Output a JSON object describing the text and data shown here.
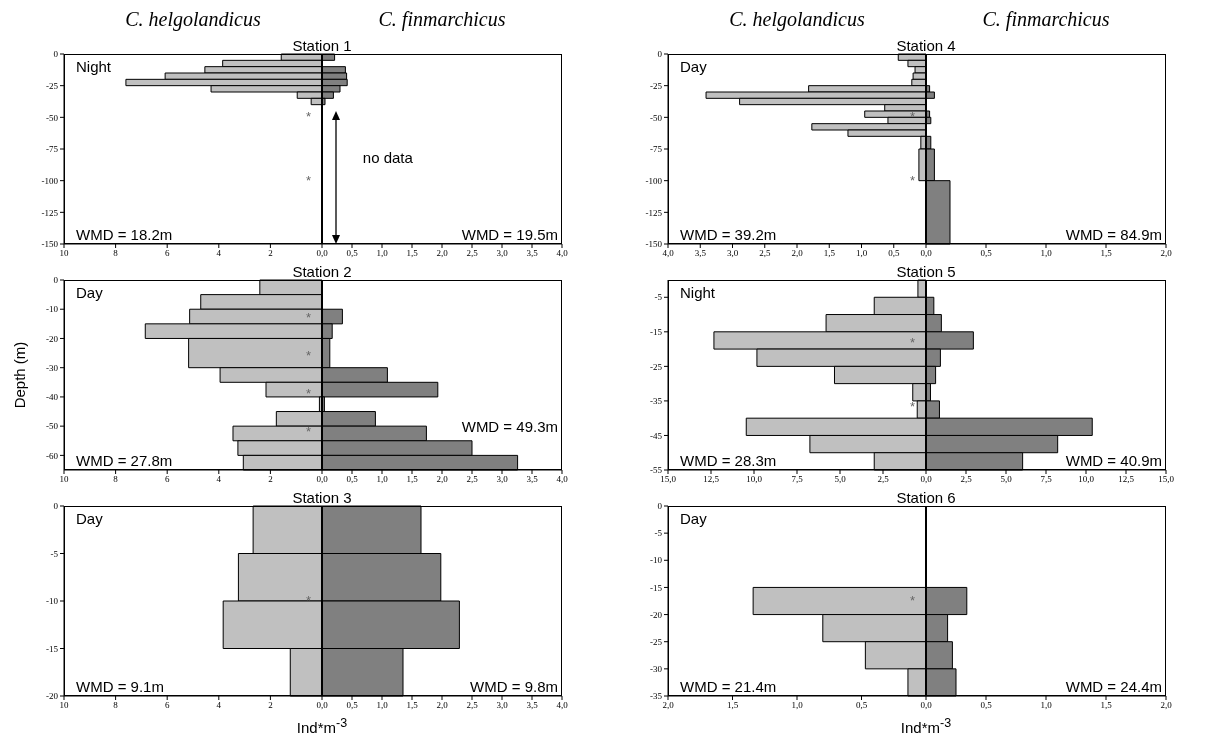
{
  "chart_data": [
    {
      "type": "histogram",
      "orientation": "horizontal",
      "title": "Station 1",
      "subtitle": "C. helgolandicus",
      "bins": [
        0,
        -5,
        -10,
        -15,
        -20,
        -25,
        -30,
        -35,
        -40
      ],
      "values": [
        1.58,
        3.85,
        4.54,
        6.08,
        7.6,
        4.3,
        0.96,
        0.42
      ],
      "color": "#c0c0c0",
      "xlim": [
        10,
        0
      ],
      "xticks": [
        10,
        8,
        6,
        4,
        2,
        {
          "value": 0,
          "label": "0,0"
        }
      ],
      "ylim": [
        -150,
        0
      ],
      "yticks": [
        0,
        -25,
        -50,
        -75,
        -100,
        -125,
        -150
      ],
      "annotations": [
        "Night",
        "WMD = 18.2m",
        "*",
        "*"
      ]
    },
    {
      "type": "histogram",
      "orientation": "horizontal",
      "subtitle": "C. finmarchicus",
      "bins": [
        0,
        -5,
        -10,
        -15,
        -20,
        -25,
        -30,
        -35,
        -40
      ],
      "values": [
        0.21,
        0,
        0.39,
        0.41,
        0.42,
        0.3,
        0.19,
        0.05
      ],
      "color": "#808080",
      "xlim": [
        0,
        4
      ],
      "xticks": [
        {
          "value": 0.5,
          "label": "0,5"
        },
        {
          "value": 1,
          "label": "1,0"
        },
        {
          "value": 1.5,
          "label": "1,5"
        },
        {
          "value": 2,
          "label": "2,0"
        },
        {
          "value": 2.5,
          "label": "2,5"
        },
        {
          "value": 3,
          "label": "3,0"
        },
        {
          "value": 3.5,
          "label": "3,5"
        },
        {
          "value": 4,
          "label": "4,0"
        }
      ],
      "ylim": [
        -150,
        0
      ],
      "tick_labels": "x",
      "annotations": [
        "WMD = 19.5m",
        "no data"
      ]
    },
    {
      "type": "histogram",
      "orientation": "horizontal",
      "title": "Station 4",
      "subtitle": "C. helgolandicus",
      "bins": [
        0,
        -5,
        -10,
        -15,
        -20,
        -25,
        -30,
        -35,
        -40,
        -45,
        -50,
        -55,
        -60,
        -65,
        -75,
        -100
      ],
      "values": [
        0.43,
        0.28,
        0.17,
        0.2,
        0.22,
        1.82,
        3.41,
        2.89,
        0.64,
        0.95,
        0.59,
        1.77,
        1.21,
        0.08,
        0.11
      ],
      "color": "#c0c0c0",
      "xlim": [
        4,
        0
      ],
      "xticks": [
        {
          "value": 4,
          "label": "4,0"
        },
        {
          "value": 3.5,
          "label": "3,5"
        },
        {
          "value": 3,
          "label": "3,0"
        },
        {
          "value": 2.5,
          "label": "2,5"
        },
        {
          "value": 2,
          "label": "2,0"
        },
        {
          "value": 1.5,
          "label": "1,5"
        },
        {
          "value": 1,
          "label": "1,0"
        },
        {
          "value": 0.5,
          "label": "0,5"
        },
        {
          "value": 0,
          "label": "0,0"
        }
      ],
      "ylim": [
        -150,
        0
      ],
      "yticks": [
        0,
        -25,
        -50,
        -75,
        -100,
        -125,
        -150
      ],
      "annotations": [
        "Day",
        "WMD = 39.2m",
        "*",
        "*"
      ]
    },
    {
      "type": "histogram",
      "orientation": "horizontal",
      "subtitle": "C. finmarchicus",
      "bins": [
        -25,
        -30,
        -35,
        -45,
        -50,
        -55,
        -65,
        -75,
        -100,
        -150
      ],
      "values": [
        0.03,
        0.07,
        0,
        0.03,
        0.04,
        0,
        0.04,
        0.07,
        0.2
      ],
      "color": "#808080",
      "xlim": [
        0,
        2
      ],
      "xticks": [
        {
          "value": 0.5,
          "label": "0,5"
        },
        {
          "value": 1,
          "label": "1,0"
        },
        {
          "value": 1.5,
          "label": "1,5"
        },
        {
          "value": 2,
          "label": "2,0"
        }
      ],
      "ylim": [
        -150,
        0
      ],
      "tick_labels": "x",
      "annotations": [
        "WMD = 84.9m"
      ]
    },
    {
      "type": "histogram",
      "orientation": "horizontal",
      "title": "Station 2",
      "ylabel": "Depth (m)",
      "bins": [
        0,
        -5,
        -10,
        -15,
        -20,
        -30,
        -35,
        -40,
        -45,
        -50,
        -55,
        -60,
        -65
      ],
      "values": [
        2.41,
        4.7,
        5.13,
        6.85,
        5.17,
        3.95,
        2.17,
        0.1,
        1.77,
        3.45,
        3.26,
        3.05
      ],
      "color": "#c0c0c0",
      "xlim": [
        10,
        0
      ],
      "xticks": [
        10,
        8,
        6,
        4,
        2,
        {
          "value": 0,
          "label": "0,0"
        }
      ],
      "ylim": [
        -65,
        0
      ],
      "yticks": [
        0,
        -10,
        -20,
        -30,
        -40,
        -50,
        -60
      ],
      "annotations": [
        "Day",
        "WMD = 27.8m",
        "*",
        "*",
        "*",
        "*"
      ]
    },
    {
      "type": "histogram",
      "orientation": "horizontal",
      "bins": [
        -10,
        -15,
        -20,
        -30,
        -35,
        -40,
        -45,
        -50,
        -55,
        -60,
        -65
      ],
      "values": [
        0.34,
        0.17,
        0.13,
        1.09,
        1.93,
        0.04,
        0.89,
        1.74,
        2.5,
        3.26
      ],
      "color": "#808080",
      "xlim": [
        0,
        4
      ],
      "xticks": [
        {
          "value": 0.5,
          "label": "0,5"
        },
        {
          "value": 1,
          "label": "1,0"
        },
        {
          "value": 1.5,
          "label": "1,5"
        },
        {
          "value": 2,
          "label": "2,0"
        },
        {
          "value": 2.5,
          "label": "2,5"
        },
        {
          "value": 3,
          "label": "3,0"
        },
        {
          "value": 3.5,
          "label": "3,5"
        },
        {
          "value": 4,
          "label": "4,0"
        }
      ],
      "ylim": [
        -65,
        0
      ],
      "tick_labels": "x",
      "annotations": [
        "WMD = 49.3m"
      ]
    },
    {
      "type": "histogram",
      "orientation": "horizontal",
      "title": "Station 5",
      "bins": [
        0,
        -5,
        -10,
        -15,
        -20,
        -25,
        -30,
        -35,
        -40,
        -45,
        -50,
        -55
      ],
      "values": [
        0.47,
        3.01,
        5.81,
        12.33,
        9.83,
        5.32,
        0.77,
        0.51,
        10.45,
        6.75,
        3.01
      ],
      "color": "#c0c0c0",
      "xlim": [
        15,
        0
      ],
      "xticks": [
        {
          "value": 15,
          "label": "15,0"
        },
        {
          "value": 12.5,
          "label": "12,5"
        },
        {
          "value": 10,
          "label": "10,0"
        },
        {
          "value": 7.5,
          "label": "7,5"
        },
        {
          "value": 5,
          "label": "5,0"
        },
        {
          "value": 2.5,
          "label": "2,5"
        },
        {
          "value": 0,
          "label": "0,0"
        }
      ],
      "ylim": [
        -55,
        0
      ],
      "yticks": [
        -5,
        -15,
        -25,
        -35,
        -45,
        -55
      ],
      "annotations": [
        "Night",
        "WMD = 28.3m",
        "*",
        "*"
      ]
    },
    {
      "type": "histogram",
      "orientation": "horizontal",
      "bins": [
        -5,
        -10,
        -15,
        -20,
        -25,
        -30,
        -35,
        -40,
        -45,
        -50,
        -55
      ],
      "values": [
        0.49,
        0.96,
        2.96,
        0.9,
        0.6,
        0.28,
        0.84,
        10.39,
        8.23,
        6.04
      ],
      "color": "#808080",
      "xlim": [
        0,
        15
      ],
      "xticks": [
        {
          "value": 2.5,
          "label": "2,5"
        },
        {
          "value": 5,
          "label": "5,0"
        },
        {
          "value": 7.5,
          "label": "7,5"
        },
        {
          "value": 10,
          "label": "10,0"
        },
        {
          "value": 12.5,
          "label": "12,5"
        },
        {
          "value": 15,
          "label": "15,0"
        }
      ],
      "ylim": [
        -55,
        0
      ],
      "tick_labels": "x",
      "annotations": [
        "WMD = 40.9m"
      ]
    },
    {
      "type": "histogram",
      "orientation": "horizontal",
      "title": "Station 3",
      "xlabel": "Ind*m$^{-3}$",
      "bins": [
        0,
        -5,
        -10,
        -15,
        -20
      ],
      "values": [
        2.67,
        3.24,
        3.83,
        1.23
      ],
      "color": "#c0c0c0",
      "xlim": [
        10,
        0
      ],
      "xticks": [
        10,
        8,
        6,
        4,
        2,
        {
          "value": 0,
          "label": "0,0"
        }
      ],
      "ylim": [
        -20,
        0
      ],
      "yticks": [
        0,
        -5,
        -10,
        -15,
        -20
      ],
      "annotations": [
        "Day",
        "WMD = 9.1m",
        "*"
      ]
    },
    {
      "type": "histogram",
      "orientation": "horizontal",
      "bins": [
        0,
        -5,
        -10,
        -15,
        -20
      ],
      "values": [
        1.65,
        1.98,
        2.29,
        1.35
      ],
      "color": "#808080",
      "xlim": [
        0,
        4
      ],
      "xticks": [
        {
          "value": 0.5,
          "label": "0,5"
        },
        {
          "value": 1,
          "label": "1,0"
        },
        {
          "value": 1.5,
          "label": "1,5"
        },
        {
          "value": 2,
          "label": "2,0"
        },
        {
          "value": 2.5,
          "label": "2,5"
        },
        {
          "value": 3,
          "label": "3,0"
        },
        {
          "value": 3.5,
          "label": "3,5"
        },
        {
          "value": 4,
          "label": "4,0"
        }
      ],
      "ylim": [
        -20,
        0
      ],
      "tick_labels": "x",
      "annotations": [
        "WMD = 9.8m"
      ]
    },
    {
      "type": "histogram",
      "orientation": "horizontal",
      "title": "Station 6",
      "xlabel": "Ind*m$^{-3}$",
      "bins": [
        -15,
        -20,
        -25,
        -30,
        -35
      ],
      "values": [
        1.34,
        0.8,
        0.47,
        0.14
      ],
      "color": "#c0c0c0",
      "xlim": [
        2,
        0
      ],
      "xticks": [
        {
          "value": 2,
          "label": "2,0"
        },
        {
          "value": 1.5,
          "label": "1,5"
        },
        {
          "value": 1,
          "label": "1,0"
        },
        {
          "value": 0.5,
          "label": "0,5"
        },
        {
          "value": 0,
          "label": "0,0"
        }
      ],
      "ylim": [
        -35,
        0
      ],
      "yticks": [
        0,
        -5,
        -10,
        -15,
        -20,
        -25,
        -30,
        -35
      ],
      "annotations": [
        "Day",
        "WMD = 21.4m",
        "*"
      ]
    },
    {
      "type": "histogram",
      "orientation": "horizontal",
      "bins": [
        -15,
        -20,
        -25,
        -30,
        -35
      ],
      "values": [
        0.34,
        0.18,
        0.22,
        0.25
      ],
      "color": "#808080",
      "xlim": [
        0,
        2
      ],
      "xticks": [
        {
          "value": 0.5,
          "label": "0,5"
        },
        {
          "value": 1,
          "label": "1,0"
        },
        {
          "value": 1.5,
          "label": "1,5"
        },
        {
          "value": 2,
          "label": "2,0"
        }
      ],
      "ylim": [
        -35,
        0
      ],
      "tick_labels": "x",
      "annotations": [
        "WMD = 24.4m"
      ]
    }
  ]
}
